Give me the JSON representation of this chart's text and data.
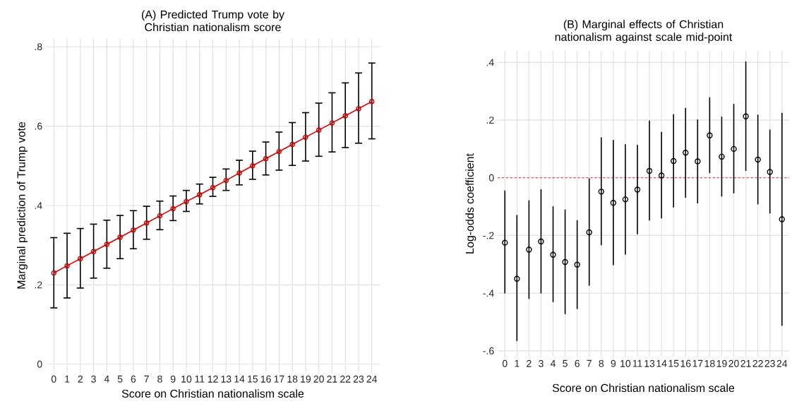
{
  "chart_data": [
    {
      "type": "line",
      "title": "(A) Predicted Trump vote by Christian nationalism score",
      "xlabel": "Score on Christian nationalism scale",
      "ylabel": "Marginal prediction of Trump vote",
      "categories": [
        "0",
        "1",
        "2",
        "3",
        "4",
        "5",
        "6",
        "7",
        "8",
        "9",
        "10",
        "11",
        "12",
        "13",
        "14",
        "15",
        "16",
        "17",
        "18",
        "19",
        "20",
        "21",
        "22",
        "23",
        "24"
      ],
      "series": [
        {
          "color": "#d40000",
          "values": [
            0.23,
            0.248,
            0.266,
            0.284,
            0.302,
            0.32,
            0.338,
            0.356,
            0.374,
            0.392,
            0.41,
            0.427,
            0.445,
            0.463,
            0.482,
            0.5,
            0.518,
            0.536,
            0.554,
            0.572,
            0.59,
            0.608,
            0.626,
            0.644,
            0.662
          ],
          "errors": [
            [
              0.142,
              0.319
            ],
            [
              0.167,
              0.33
            ],
            [
              0.192,
              0.342
            ],
            [
              0.217,
              0.353
            ],
            [
              0.242,
              0.363
            ],
            [
              0.266,
              0.375
            ],
            [
              0.291,
              0.387
            ],
            [
              0.315,
              0.398
            ],
            [
              0.339,
              0.411
            ],
            [
              0.362,
              0.424
            ],
            [
              0.385,
              0.438
            ],
            [
              0.404,
              0.454
            ],
            [
              0.423,
              0.471
            ],
            [
              0.438,
              0.492
            ],
            [
              0.452,
              0.514
            ],
            [
              0.466,
              0.537
            ],
            [
              0.477,
              0.56
            ],
            [
              0.489,
              0.585
            ],
            [
              0.501,
              0.609
            ],
            [
              0.512,
              0.634
            ],
            [
              0.524,
              0.658
            ],
            [
              0.535,
              0.684
            ],
            [
              0.546,
              0.709
            ],
            [
              0.557,
              0.734
            ],
            [
              0.568,
              0.759
            ]
          ]
        }
      ],
      "ylim": [
        -0.02,
        0.82
      ],
      "yticks": [
        {
          "value": 0,
          "label": "0"
        },
        {
          "value": 0.2,
          "label": ".2"
        },
        {
          "value": 0.4,
          "label": ".4"
        },
        {
          "value": 0.6,
          "label": ".6"
        },
        {
          "value": 0.8,
          "label": ".8"
        }
      ],
      "grid": true,
      "marker": "circle",
      "line_style": "solid"
    },
    {
      "type": "scatter",
      "title": "(B) Marginal effects of Christian nationalism against scale mid-point",
      "xlabel": "Score on Christian nationalism scale",
      "ylabel": "Log-odds coefficient",
      "categories": [
        "0",
        "1",
        "2",
        "3",
        "4",
        "5",
        "6",
        "7",
        "8",
        "9",
        "10",
        "11",
        "13",
        "14",
        "15",
        "16",
        "17",
        "18",
        "19",
        "20",
        "21",
        "22",
        "23",
        "24"
      ],
      "series": [
        {
          "color": "#000000",
          "values": [
            -0.225,
            -0.35,
            -0.249,
            -0.221,
            -0.267,
            -0.292,
            -0.301,
            -0.189,
            -0.048,
            -0.087,
            -0.075,
            -0.041,
            0.024,
            0.008,
            0.058,
            0.087,
            0.057,
            0.147,
            0.073,
            0.1,
            0.213,
            0.063,
            0.02,
            -0.144
          ],
          "errors": [
            [
              -0.401,
              -0.044
            ],
            [
              -0.566,
              -0.129
            ],
            [
              -0.42,
              -0.078
            ],
            [
              -0.401,
              -0.04
            ],
            [
              -0.431,
              -0.099
            ],
            [
              -0.473,
              -0.11
            ],
            [
              -0.455,
              -0.147
            ],
            [
              -0.374,
              -0.002
            ],
            [
              -0.234,
              0.14
            ],
            [
              -0.303,
              0.131
            ],
            [
              -0.266,
              0.116
            ],
            [
              -0.196,
              0.114
            ],
            [
              -0.148,
              0.198
            ],
            [
              -0.141,
              0.159
            ],
            [
              -0.103,
              0.22
            ],
            [
              -0.069,
              0.242
            ],
            [
              -0.089,
              0.202
            ],
            [
              0.016,
              0.279
            ],
            [
              -0.065,
              0.212
            ],
            [
              -0.054,
              0.256
            ],
            [
              0.024,
              0.403
            ],
            [
              -0.092,
              0.219
            ],
            [
              -0.124,
              0.167
            ],
            [
              -0.513,
              0.225
            ]
          ]
        }
      ],
      "ylim": [
        -0.62,
        0.44
      ],
      "yticks": [
        {
          "value": -0.6,
          "label": "-.6"
        },
        {
          "value": -0.4,
          "label": "-.4"
        },
        {
          "value": -0.2,
          "label": "-.2"
        },
        {
          "value": 0,
          "label": "0"
        },
        {
          "value": 0.2,
          "label": ".2"
        },
        {
          "value": 0.4,
          "label": ".4"
        }
      ],
      "ref_lines": [
        {
          "axis": "y",
          "value": 0,
          "color": "#e8202a",
          "line_style": "dashed"
        }
      ],
      "grid": true,
      "marker": "circle"
    }
  ]
}
